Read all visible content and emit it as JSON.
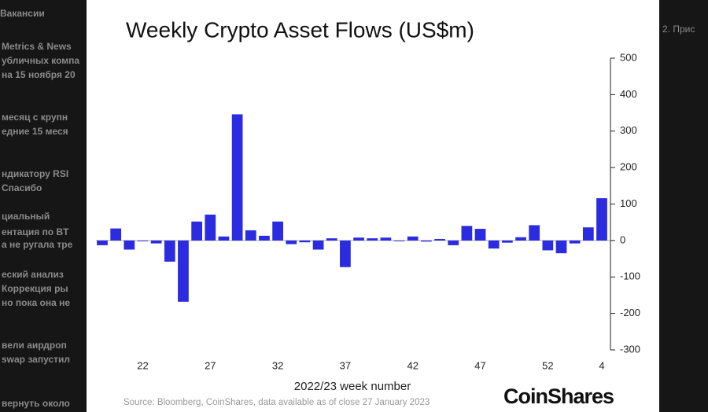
{
  "background_texts": [
    "Вакансии",
    "Metrics & News",
    "убличных компа",
    "на 15 ноября 20",
    "месяц с крупн",
    "едние 15 меся",
    "ндикатору RSI",
    "Спасибо",
    "циальный",
    "ентация по BT",
    "а не ругала тре",
    "еский анализ",
    "Коррекция ры",
    "но пока она не",
    "вели аирдроп",
    "swap запустил",
    "вернуть около"
  ],
  "right_text": "2. Прис",
  "chart_data": {
    "type": "bar",
    "title": "Weekly Crypto Asset Flows (US$m)",
    "x_label": "2022/23 week number",
    "source": "Source: Bloomberg, CoinShares, data available as of close 27 January 2023",
    "brand": "CoinShares",
    "categories": [
      null,
      null,
      null,
      "22",
      null,
      null,
      null,
      null,
      "27",
      null,
      null,
      null,
      null,
      "32",
      null,
      null,
      null,
      null,
      "37",
      null,
      null,
      null,
      null,
      "42",
      null,
      null,
      null,
      null,
      "47",
      null,
      null,
      null,
      null,
      "52",
      null,
      null,
      null,
      "4"
    ],
    "values": [
      -13,
      33,
      -25,
      -2,
      -8,
      -58,
      -168,
      52,
      71,
      11,
      346,
      28,
      13,
      52,
      -10,
      -5,
      -25,
      6,
      -73,
      8,
      6,
      8,
      -2,
      11,
      -3,
      4,
      -13,
      40,
      32,
      -22,
      -6,
      9,
      42,
      -27,
      -35,
      -8,
      36,
      116
    ],
    "color": "#2b2bdf",
    "ylim": [
      -300,
      500
    ],
    "yticks": [
      -300,
      -200,
      -100,
      0,
      100,
      200,
      300,
      400,
      500
    ],
    "y_axis_side": "right"
  }
}
